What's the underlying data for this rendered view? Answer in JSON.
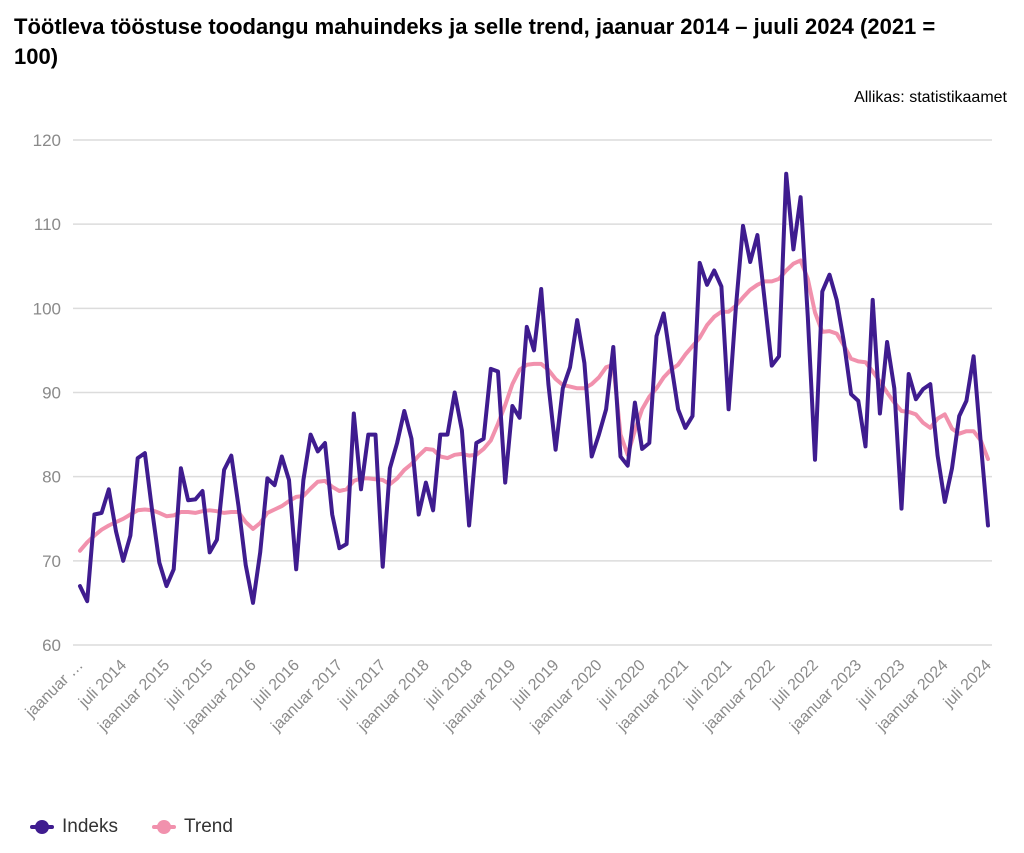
{
  "chart_data": {
    "type": "line",
    "title": "Töötleva tööstuse toodangu mahuindeks ja selle trend, jaanuar 2014 – juuli 2024 (2021 = 100)",
    "source": "Allikas: statistikaamet",
    "xlabel": "",
    "ylabel": "",
    "ylim": [
      60,
      120
    ],
    "yticks": [
      "60",
      "70",
      "80",
      "90",
      "100",
      "110",
      "120"
    ],
    "grid": true,
    "legend_position": "bottom-left",
    "x_start": "jaanuar 2014",
    "x_end": "juli 2024",
    "xtick_labels": [
      "jaanuar …",
      "juli 2014",
      "jaanuar 2015",
      "juli 2015",
      "jaanuar 2016",
      "juli 2016",
      "jaanuar 2017",
      "juli 2017",
      "jaanuar 2018",
      "juli 2018",
      "jaanuar 2019",
      "juli 2019",
      "jaanuar 2020",
      "juli 2020",
      "jaanuar 2021",
      "juli 2021",
      "jaanuar 2022",
      "juli 2022",
      "jaanuar 2023",
      "juli 2023",
      "jaanuar 2024",
      "juli 2024"
    ],
    "series": [
      {
        "name": "Indeks",
        "color": "#3f1c8f",
        "values": [
          67,
          65.2,
          75.5,
          75.7,
          78.5,
          73.5,
          70,
          73,
          82.2,
          82.8,
          76,
          69.8,
          67,
          69,
          81,
          77.2,
          77.3,
          78.3,
          71,
          72.5,
          80.8,
          82.5,
          76.5,
          69.5,
          65,
          71,
          79.8,
          79,
          82.4,
          79.6,
          69,
          79.6,
          85,
          83,
          84,
          75.5,
          71.5,
          72,
          87.5,
          78.5,
          85,
          85,
          69.3,
          81,
          84,
          87.8,
          84.5,
          75.5,
          79.3,
          76,
          85,
          85,
          90,
          85.5,
          74.2,
          84,
          84.5,
          92.8,
          92.5,
          79.3,
          88.4,
          87,
          97.8,
          95,
          102.3,
          91,
          83.2,
          90.5,
          93,
          98.6,
          93.5,
          82.4,
          85,
          88,
          95.4,
          82.4,
          81.3,
          88.8,
          83.3,
          84,
          96.7,
          99.4,
          93.6,
          88,
          85.8,
          87.2,
          105.4,
          102.8,
          104.5,
          102.6,
          88,
          100,
          109.8,
          105.5,
          108.7,
          101,
          93.2,
          94.3,
          116,
          107,
          113.2,
          99,
          82,
          102,
          104,
          101,
          96,
          89.8,
          89,
          83.6,
          101,
          87.5,
          96,
          90.5,
          76.2,
          92.2,
          89.2,
          90.4,
          91,
          82.5,
          77,
          81,
          87.2,
          89,
          94.3,
          84,
          74.2
        ]
      },
      {
        "name": "Trend",
        "color": "#f191ad",
        "values": [
          71.2,
          72.2,
          73,
          73.7,
          74.2,
          74.6,
          75,
          75.5,
          76,
          76.1,
          76,
          75.7,
          75.3,
          75.4,
          75.8,
          75.8,
          75.7,
          75.9,
          76,
          75.9,
          75.7,
          75.8,
          75.8,
          74.6,
          73.8,
          74.5,
          75.7,
          76.1,
          76.5,
          77.1,
          77.6,
          77.7,
          78.6,
          79.4,
          79.5,
          78.8,
          78.3,
          78.5,
          79.5,
          79.8,
          79.8,
          79.7,
          79.6,
          79.1,
          79.8,
          80.8,
          81.5,
          82.5,
          83.3,
          83.2,
          82.4,
          82.2,
          82.6,
          82.7,
          82.5,
          82.6,
          83.3,
          84.3,
          86.3,
          88.5,
          91,
          92.7,
          93.3,
          93.4,
          93.4,
          92.7,
          91.6,
          90.9,
          90.7,
          90.5,
          90.5,
          91,
          91.8,
          93,
          93.3,
          85,
          82.6,
          85.5,
          88,
          89.5,
          90.5,
          91.8,
          92.7,
          93.3,
          94.5,
          95.5,
          96.5,
          98,
          99,
          99.6,
          99.6,
          100.3,
          101.3,
          102.2,
          102.8,
          103.2,
          103.2,
          103.5,
          104.5,
          105.3,
          105.7,
          103.5,
          99.5,
          97.2,
          97.3,
          97,
          95.6,
          94,
          93.7,
          93.6,
          92.5,
          91.3,
          90,
          88.8,
          87.8,
          87.7,
          87.4,
          86.4,
          85.8,
          86.9,
          87.4,
          85.7,
          85.1,
          85.4,
          85.4,
          84.3,
          82.1
        ]
      }
    ]
  }
}
